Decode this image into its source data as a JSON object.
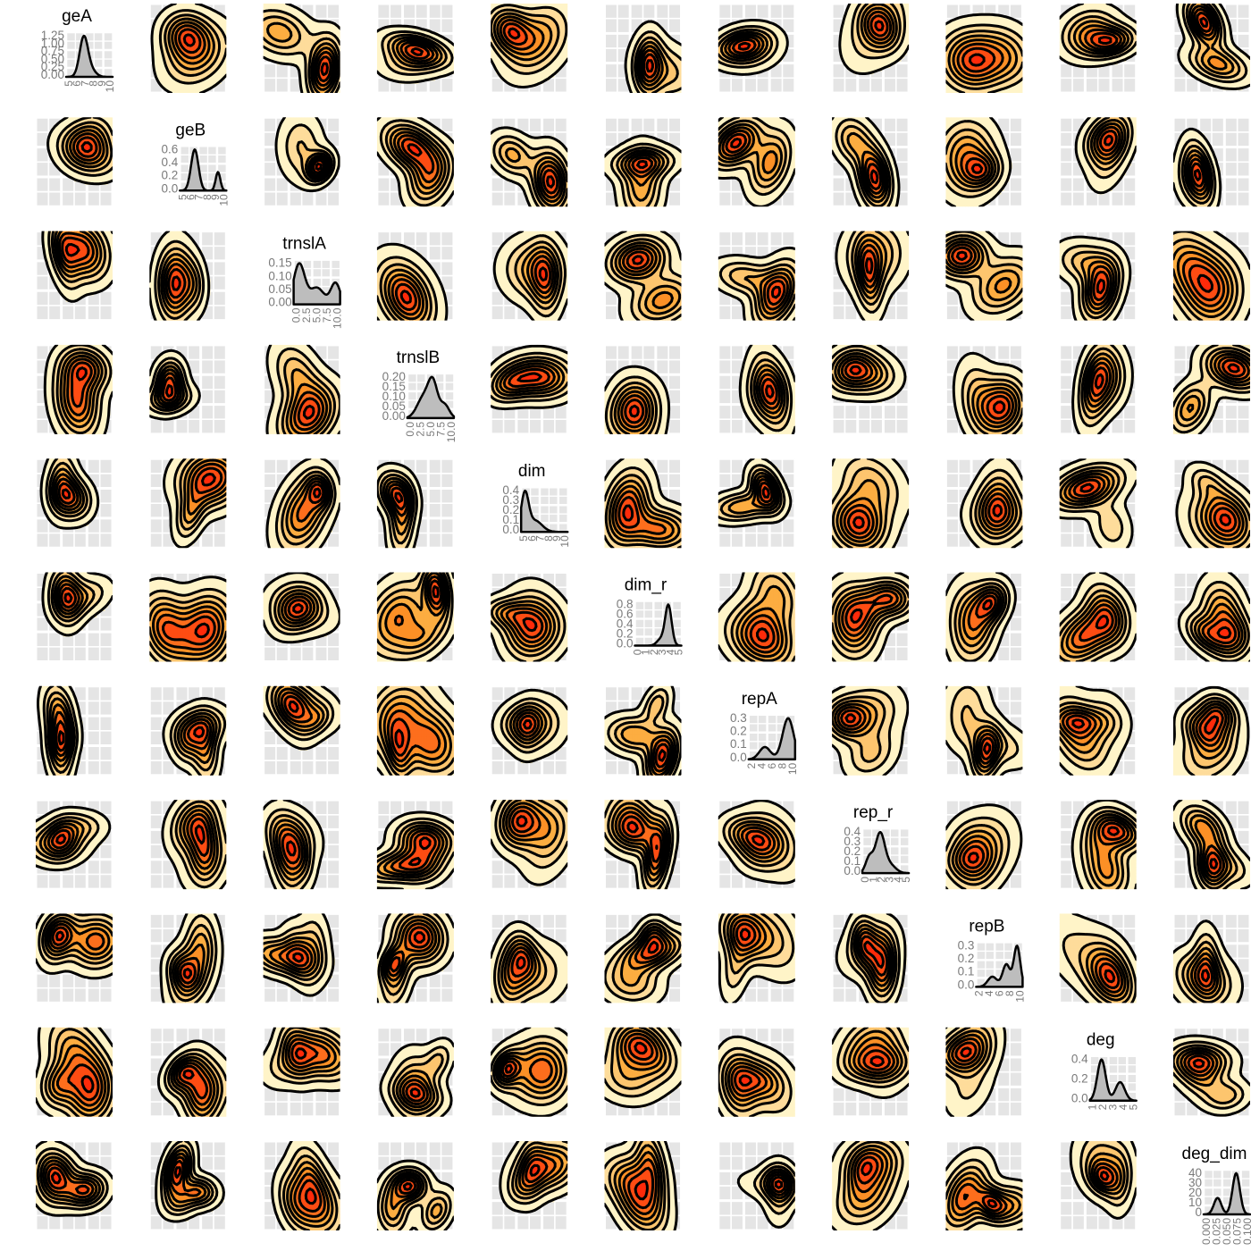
{
  "figure": {
    "rows": 11,
    "cols": 11
  },
  "colors": {
    "panel_background": "#e5e5e5",
    "grid": "#ffffff",
    "density_fill": "#bdbdbd",
    "contour_line": "#000000",
    "fill_low": "#fff4c8",
    "fill_mid": "#fca12b",
    "fill_high": "#ff2a0a",
    "tick_label": "#7a7a7a"
  },
  "chart_data": {
    "type": "pairs-density-matrix",
    "diagonal_type": "density",
    "off_diagonal_type": "2d-density-contour",
    "variables": [
      {
        "name": "geA",
        "y_ticks": [
          "1.25",
          "1.00",
          "0.75",
          "0.50",
          "0.25",
          "0.00"
        ],
        "x_ticks": [
          "5",
          "6",
          "7",
          "8",
          "9",
          "10"
        ],
        "density_peaks": [
          [
            0.38,
            1.0,
            0.09
          ],
          [
            0.55,
            0.15,
            0.1
          ]
        ]
      },
      {
        "name": "geB",
        "y_ticks": [
          "0.6",
          "0.4",
          "0.2",
          "0.0"
        ],
        "x_ticks": [
          "5",
          "6",
          "7",
          "8",
          "9",
          "10"
        ],
        "density_peaks": [
          [
            0.32,
            1.0,
            0.08
          ],
          [
            0.82,
            0.45,
            0.05
          ]
        ]
      },
      {
        "name": "trnslA",
        "y_ticks": [
          "0.15",
          "0.10",
          "0.05",
          "0.00"
        ],
        "x_ticks": [
          "0.0",
          "2.5",
          "5.0",
          "7.5",
          "10.0"
        ],
        "density_peaks": [
          [
            0.12,
            0.85,
            0.12
          ],
          [
            0.5,
            0.35,
            0.15
          ],
          [
            0.9,
            0.45,
            0.1
          ]
        ]
      },
      {
        "name": "trnslB",
        "y_ticks": [
          "0.20",
          "0.15",
          "0.10",
          "0.05",
          "0.00"
        ],
        "x_ticks": [
          "0.0",
          "2.5",
          "5.0",
          "7.5",
          "10.0"
        ],
        "density_peaks": [
          [
            0.35,
            0.55,
            0.14
          ],
          [
            0.55,
            0.85,
            0.1
          ],
          [
            0.8,
            0.35,
            0.1
          ]
        ]
      },
      {
        "name": "dim",
        "y_ticks": [
          "0.4",
          "0.3",
          "0.2",
          "0.1",
          "0.0"
        ],
        "x_ticks": [
          "5",
          "6",
          "7",
          "8",
          "9",
          "10"
        ],
        "density_peaks": [
          [
            0.08,
            1.0,
            0.08
          ],
          [
            0.3,
            0.3,
            0.15
          ]
        ]
      },
      {
        "name": "dim_r",
        "y_ticks": [
          "0.8",
          "0.6",
          "0.4",
          "0.2",
          "0.0"
        ],
        "x_ticks": [
          "0",
          "1",
          "2",
          "3",
          "4",
          "5"
        ],
        "density_peaks": [
          [
            0.72,
            1.0,
            0.07
          ],
          [
            0.55,
            0.15,
            0.08
          ]
        ]
      },
      {
        "name": "repA",
        "y_ticks": [
          "0.3",
          "0.2",
          "0.1",
          "0.0"
        ],
        "x_ticks": [
          "2",
          "4",
          "6",
          "8",
          "10"
        ],
        "density_peaks": [
          [
            0.35,
            0.3,
            0.12
          ],
          [
            0.85,
            1.0,
            0.12
          ]
        ]
      },
      {
        "name": "rep_r",
        "y_ticks": [
          "0.4",
          "0.3",
          "0.2",
          "0.1",
          "0.0"
        ],
        "x_ticks": [
          "0",
          "1",
          "2",
          "3",
          "4",
          "5"
        ],
        "density_peaks": [
          [
            0.38,
            1.0,
            0.1
          ],
          [
            0.15,
            0.4,
            0.08
          ],
          [
            0.6,
            0.2,
            0.12
          ]
        ]
      },
      {
        "name": "repB",
        "y_ticks": [
          "0.3",
          "0.2",
          "0.1",
          "0.0"
        ],
        "x_ticks": [
          "2",
          "4",
          "6",
          "8",
          "10"
        ],
        "density_peaks": [
          [
            0.35,
            0.25,
            0.1
          ],
          [
            0.65,
            0.55,
            0.08
          ],
          [
            0.88,
            1.0,
            0.07
          ]
        ]
      },
      {
        "name": "deg",
        "y_ticks": [
          "0.4",
          "0.2",
          "0.0"
        ],
        "x_ticks": [
          "1",
          "2",
          "3",
          "4",
          "5"
        ],
        "density_peaks": [
          [
            0.25,
            1.0,
            0.09
          ],
          [
            0.65,
            0.45,
            0.1
          ]
        ]
      },
      {
        "name": "deg_dim",
        "y_ticks": [
          "40",
          "30",
          "20",
          "10",
          "0"
        ],
        "x_ticks": [
          "0.000",
          "0.025",
          "0.050",
          "0.075",
          "0.100"
        ],
        "density_peaks": [
          [
            0.3,
            0.4,
            0.08
          ],
          [
            0.7,
            1.0,
            0.08
          ]
        ]
      }
    ]
  }
}
